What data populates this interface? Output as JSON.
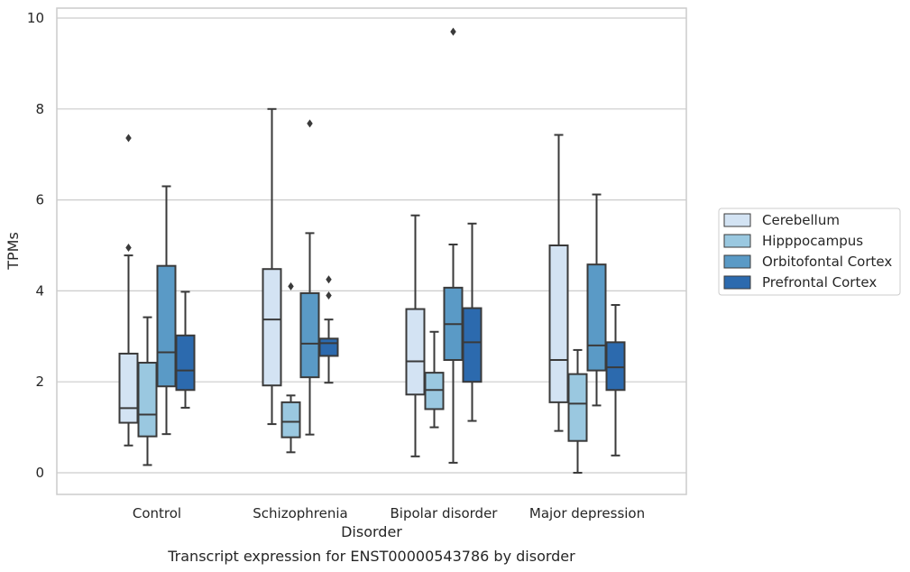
{
  "chart_data": {
    "type": "box",
    "xlabel": "Disorder",
    "ylabel": "TPMs",
    "caption": "Transcript expression for ENST00000543786 by disorder",
    "ylim": [
      -0.45,
      10.2
    ],
    "yticks": [
      "0",
      "2",
      "4",
      "6",
      "8",
      "10"
    ],
    "grid": "horizontal",
    "legend_position": "right",
    "categories": [
      "Control",
      "Schizophrenia",
      "Bipolar disorder",
      "Major depression"
    ],
    "series": [
      {
        "name": "Cerebellum",
        "color": "#d3e3f3",
        "boxes": [
          {
            "min": 0.6,
            "q1": 1.1,
            "median": 1.42,
            "q3": 2.62,
            "max": 4.78,
            "outliers": [
              4.95,
              7.36
            ]
          },
          {
            "min": 1.07,
            "q1": 1.92,
            "median": 3.37,
            "q3": 4.48,
            "max": 8.0,
            "outliers": []
          },
          {
            "min": 0.36,
            "q1": 1.72,
            "median": 2.45,
            "q3": 3.6,
            "max": 5.66,
            "outliers": []
          },
          {
            "min": 0.92,
            "q1": 1.55,
            "median": 2.48,
            "q3": 5.0,
            "max": 7.43,
            "outliers": []
          }
        ]
      },
      {
        "name": "Hipppocampus",
        "color": "#9ac8e0",
        "boxes": [
          {
            "min": 0.17,
            "q1": 0.8,
            "median": 1.28,
            "q3": 2.42,
            "max": 3.42,
            "outliers": []
          },
          {
            "min": 0.45,
            "q1": 0.78,
            "median": 1.12,
            "q3": 1.55,
            "max": 1.7,
            "outliers": [
              4.1
            ]
          },
          {
            "min": 1.0,
            "q1": 1.4,
            "median": 1.82,
            "q3": 2.2,
            "max": 3.1,
            "outliers": []
          },
          {
            "min": 0.0,
            "q1": 0.7,
            "median": 1.52,
            "q3": 2.17,
            "max": 2.7,
            "outliers": []
          }
        ]
      },
      {
        "name": "Orbitofontal Cortex",
        "color": "#5a9ac6",
        "boxes": [
          {
            "min": 0.85,
            "q1": 1.9,
            "median": 2.65,
            "q3": 4.55,
            "max": 6.3,
            "outliers": []
          },
          {
            "min": 0.84,
            "q1": 2.1,
            "median": 2.84,
            "q3": 3.95,
            "max": 5.27,
            "outliers": [
              7.68
            ]
          },
          {
            "min": 0.22,
            "q1": 2.48,
            "median": 3.27,
            "q3": 4.07,
            "max": 5.02,
            "outliers": [
              9.7
            ]
          },
          {
            "min": 1.48,
            "q1": 2.25,
            "median": 2.8,
            "q3": 4.58,
            "max": 6.12,
            "outliers": []
          }
        ]
      },
      {
        "name": "Prefrontal Cortex",
        "color": "#2c6aae",
        "boxes": [
          {
            "min": 1.43,
            "q1": 1.82,
            "median": 2.25,
            "q3": 3.02,
            "max": 3.98,
            "outliers": []
          },
          {
            "min": 1.98,
            "q1": 2.57,
            "median": 2.85,
            "q3": 2.95,
            "max": 3.37,
            "outliers": [
              3.9,
              4.25
            ]
          },
          {
            "min": 1.14,
            "q1": 2.0,
            "median": 2.87,
            "q3": 3.62,
            "max": 5.48,
            "outliers": []
          },
          {
            "min": 0.38,
            "q1": 1.82,
            "median": 2.32,
            "q3": 2.87,
            "max": 3.69,
            "outliers": []
          }
        ]
      }
    ]
  }
}
